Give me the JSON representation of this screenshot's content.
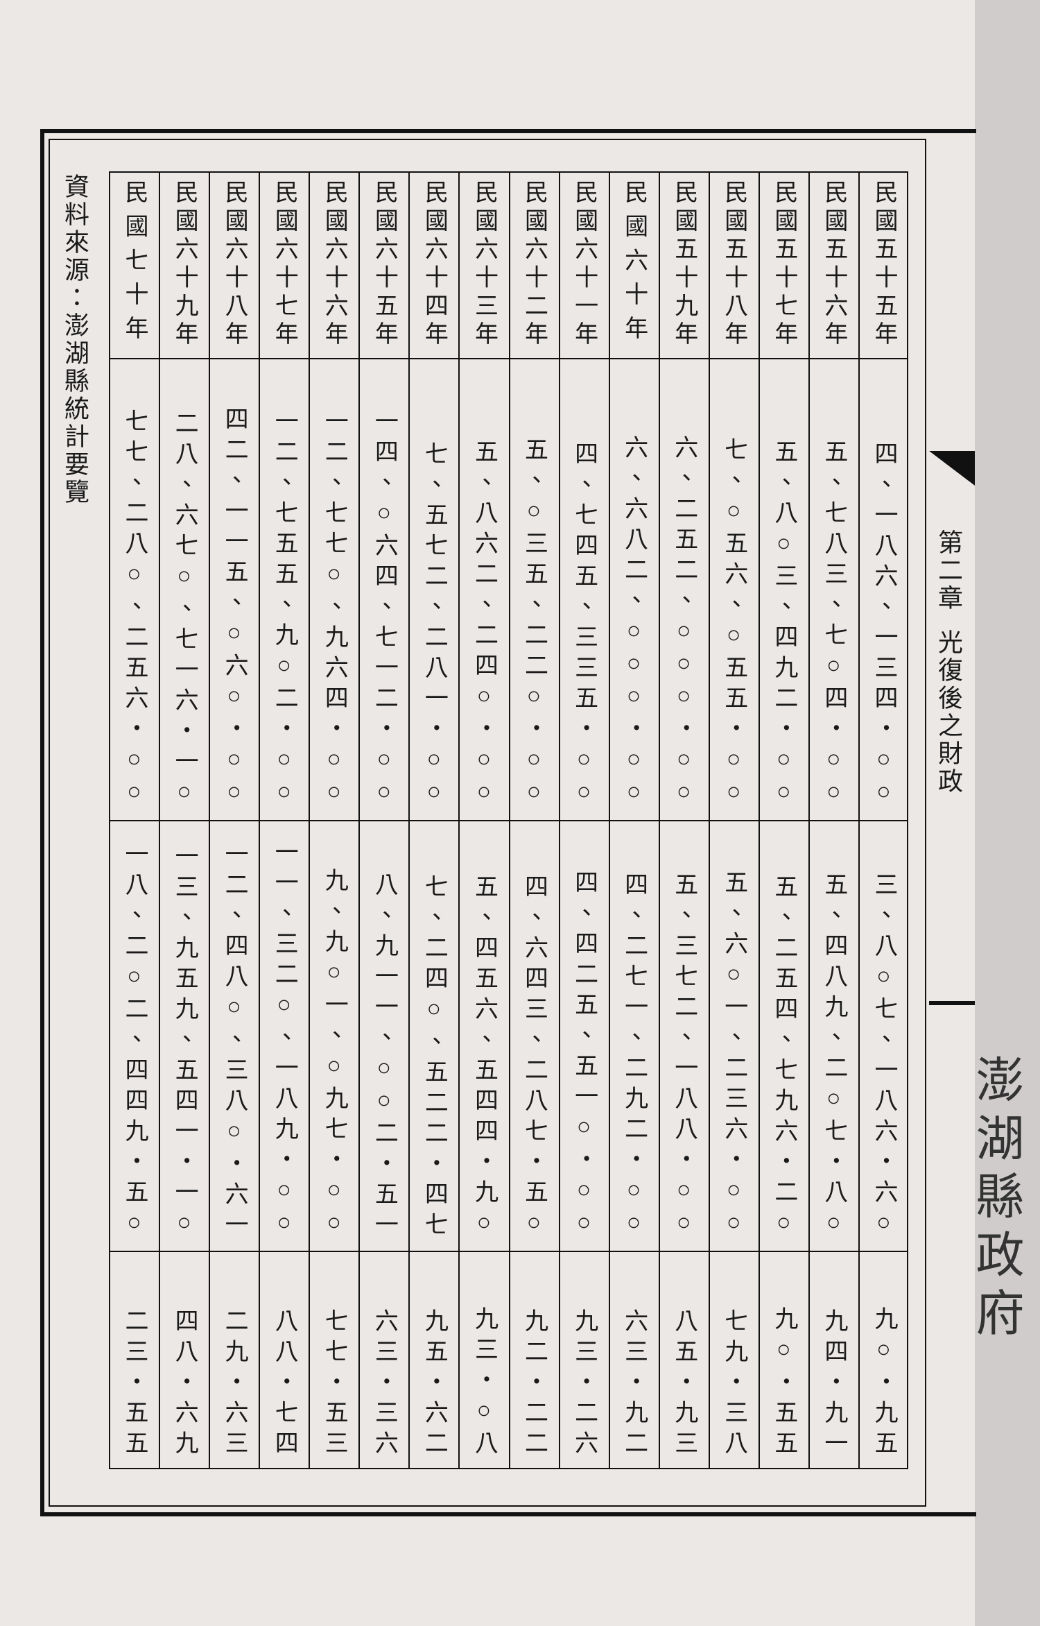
{
  "header": {
    "chapter": "第二章",
    "title": "光復後之財政"
  },
  "table": {
    "rows": [
      [
        "民國五十五年",
        "四、一八六、一三四・○○",
        "三、八○七、一八六・六○",
        "九○・九五"
      ],
      [
        "民國五十六年",
        "五、七八三、七○四・○○",
        "五、四八九、二○七・八○",
        "九四・九一"
      ],
      [
        "民國五十七年",
        "五、八○三、四九二・○○",
        "五、二五四、七九六・二○",
        "九○・五五"
      ],
      [
        "民國五十八年",
        "七、○五六、○五五・○○",
        "五、六○一、二三六・○○",
        "七九・三八"
      ],
      [
        "民國五十九年",
        "六、二五二、○○○・○○",
        "五、三七二、一八八・○○",
        "八五・九三"
      ],
      [
        "民國六十年",
        "六、六八二、○○○・○○",
        "四、二七一、二九二・○○",
        "六三・九二"
      ],
      [
        "民國六十一年",
        "四、七四五、三三五・○○",
        "四、四二五、五一○・○○",
        "九三・二六"
      ],
      [
        "民國六十二年",
        "五、○三五、二二○・○○",
        "四、六四三、二八七・五○",
        "九二・二二"
      ],
      [
        "民國六十三年",
        "五、八六二、二四○・○○",
        "五、四五六、五四四・九○",
        "九三・○八"
      ],
      [
        "民國六十四年",
        "七、五七二、二八一・○○",
        "七、二四○、五二二・四七",
        "九五・六二"
      ],
      [
        "民國六十五年",
        "一四、○六四、七一二・○○",
        "八、九一一、○○二・五一",
        "六三・三六"
      ],
      [
        "民國六十六年",
        "一二、七七○、九六四・○○",
        "九、九○一、○九七・○○",
        "七七・五三"
      ],
      [
        "民國六十七年",
        "一二、七五五、九○二・○○",
        "一一、三二○、一八九・○○",
        "八八・七四"
      ],
      [
        "民國六十八年",
        "四二、一一五、○六○・○○",
        "一二、四八○、三八○・六一",
        "二九・六三"
      ],
      [
        "民國六十九年",
        "二八、六七○、七一六・一○",
        "一三、九五九、五四一・一○",
        "四八・六九"
      ],
      [
        "民國七十年",
        "七七、二八○、二五六・○○",
        "一八、二○二、四四九・五○",
        "二三・五五"
      ]
    ]
  },
  "source": "資料來源：澎湖縣統計要覽",
  "side": "澎湖縣政府"
}
